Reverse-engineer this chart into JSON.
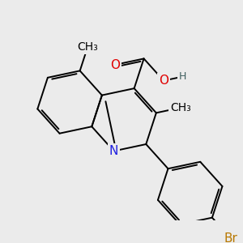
{
  "bg_color": "#ebebeb",
  "bond_color": "#000000",
  "bond_width": 1.4,
  "dbo": 0.07,
  "atom_colors": {
    "O": "#e00000",
    "N": "#2020e0",
    "Br": "#b87800",
    "H": "#406060",
    "C": "#000000"
  },
  "font_size_atom": 11,
  "font_size_h": 9,
  "font_size_me": 10
}
